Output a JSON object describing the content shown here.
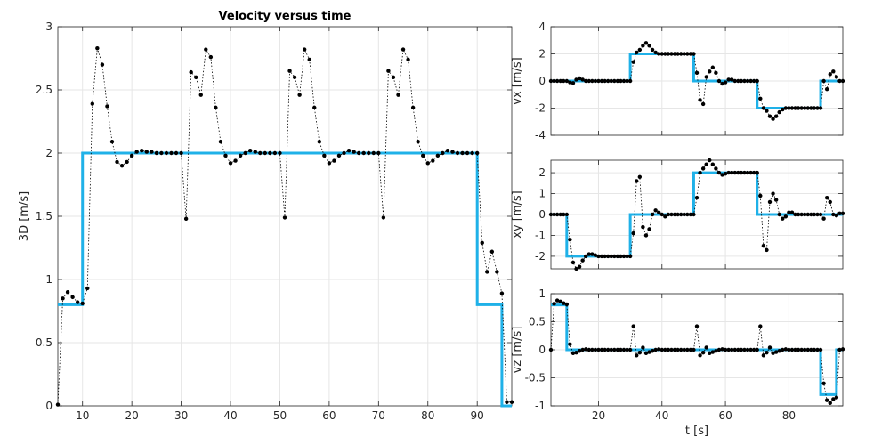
{
  "colors": {
    "reference": "#1fb1e8",
    "measured": "#000000"
  },
  "chart_data": [
    {
      "type": "line",
      "title": "Velocity versus time",
      "xlabel": "",
      "ylabel": "3D [m/s]",
      "xlim": [
        5,
        97
      ],
      "ylim": [
        0,
        3
      ],
      "xticks": [
        10,
        20,
        30,
        40,
        50,
        60,
        70,
        80,
        90
      ],
      "yticks": [
        0,
        0.5,
        1,
        1.5,
        2,
        2.5,
        3
      ],
      "grid": true,
      "reference": {
        "x": [
          5,
          10,
          10,
          90,
          90,
          95,
          95,
          97
        ],
        "y": [
          0.8,
          0.8,
          2,
          2,
          0.8,
          0.8,
          0,
          0
        ]
      },
      "measured": {
        "x": [
          5,
          6,
          7,
          8,
          9,
          10,
          11,
          12,
          13,
          14,
          15,
          16,
          17,
          18,
          19,
          20,
          21,
          22,
          23,
          24,
          25,
          26,
          27,
          28,
          29,
          30,
          31,
          32,
          33,
          34,
          35,
          36,
          37,
          38,
          39,
          40,
          41,
          42,
          43,
          44,
          45,
          46,
          47,
          48,
          49,
          50,
          51,
          52,
          53,
          54,
          55,
          56,
          57,
          58,
          59,
          60,
          61,
          62,
          63,
          64,
          65,
          66,
          67,
          68,
          69,
          70,
          71,
          72,
          73,
          74,
          75,
          76,
          77,
          78,
          79,
          80,
          81,
          82,
          83,
          84,
          85,
          86,
          87,
          88,
          89,
          90,
          91,
          92,
          93,
          94,
          95,
          96,
          97
        ],
        "y": [
          0.01,
          0.85,
          0.9,
          0.86,
          0.82,
          0.81,
          0.93,
          2.39,
          2.83,
          2.7,
          2.37,
          2.09,
          1.93,
          1.9,
          1.93,
          1.98,
          2.01,
          2.02,
          2.01,
          2.01,
          2.0,
          2.0,
          2.0,
          2.0,
          2.0,
          2.0,
          1.48,
          2.64,
          2.6,
          2.46,
          2.82,
          2.76,
          2.36,
          2.09,
          1.98,
          1.92,
          1.94,
          1.98,
          2.0,
          2.02,
          2.01,
          2.0,
          2.0,
          2.0,
          2.0,
          2.0,
          1.49,
          2.65,
          2.6,
          2.46,
          2.82,
          2.74,
          2.36,
          2.09,
          1.98,
          1.92,
          1.94,
          1.98,
          2.0,
          2.02,
          2.01,
          2.0,
          2.0,
          2.0,
          2.0,
          2.0,
          1.49,
          2.65,
          2.6,
          2.46,
          2.82,
          2.74,
          2.36,
          2.09,
          1.98,
          1.92,
          1.94,
          1.98,
          2.0,
          2.02,
          2.01,
          2.0,
          2.0,
          2.0,
          2.0,
          2.0,
          1.29,
          1.06,
          1.22,
          1.06,
          0.89,
          0.03,
          0.03
        ]
      }
    },
    {
      "type": "line",
      "title": "",
      "xlabel": "",
      "ylabel": "vx [m/s]",
      "xlim": [
        5,
        97
      ],
      "ylim": [
        -4,
        4
      ],
      "xticks": [
        20,
        40,
        60,
        80
      ],
      "yticks": [
        -4,
        -2,
        0,
        2,
        4
      ],
      "show_xticklabels": false,
      "grid": true,
      "reference": {
        "x": [
          5,
          30,
          30,
          50,
          50,
          70,
          70,
          90,
          90,
          97
        ],
        "y": [
          0,
          0,
          2,
          2,
          0,
          0,
          -2,
          -2,
          0,
          0
        ]
      },
      "measured": {
        "x": [
          5,
          6,
          7,
          8,
          9,
          10,
          11,
          12,
          13,
          14,
          15,
          16,
          17,
          18,
          19,
          20,
          21,
          22,
          23,
          24,
          25,
          26,
          27,
          28,
          29,
          30,
          31,
          32,
          33,
          34,
          35,
          36,
          37,
          38,
          39,
          40,
          41,
          42,
          43,
          44,
          45,
          46,
          47,
          48,
          49,
          50,
          51,
          52,
          53,
          54,
          55,
          56,
          57,
          58,
          59,
          60,
          61,
          62,
          63,
          64,
          65,
          66,
          67,
          68,
          69,
          70,
          71,
          72,
          73,
          74,
          75,
          76,
          77,
          78,
          79,
          80,
          81,
          82,
          83,
          84,
          85,
          86,
          87,
          88,
          89,
          90,
          91,
          92,
          93,
          94,
          95,
          96,
          97
        ],
        "y": [
          0.0,
          0.0,
          0.0,
          0.0,
          0.0,
          0.0,
          -0.1,
          -0.15,
          0.1,
          0.2,
          0.1,
          0.0,
          0.0,
          0.0,
          0.0,
          0.0,
          0.0,
          0.0,
          0.0,
          0.0,
          0.0,
          0.0,
          0.0,
          0.0,
          0.0,
          0.0,
          1.4,
          2.1,
          2.3,
          2.6,
          2.8,
          2.6,
          2.3,
          2.1,
          2.0,
          2.0,
          2.0,
          2.0,
          2.0,
          2.0,
          2.0,
          2.0,
          2.0,
          2.0,
          2.0,
          2.0,
          0.6,
          -1.4,
          -1.7,
          0.3,
          0.7,
          1.0,
          0.6,
          0.0,
          -0.2,
          -0.1,
          0.1,
          0.1,
          0.0,
          0.0,
          0.0,
          0.0,
          0.0,
          0.0,
          0.0,
          0.0,
          -1.3,
          -2.0,
          -2.2,
          -2.6,
          -2.8,
          -2.6,
          -2.3,
          -2.1,
          -2.0,
          -2.0,
          -2.0,
          -2.0,
          -2.0,
          -2.0,
          -2.0,
          -2.0,
          -2.0,
          -2.0,
          -2.0,
          -2.0,
          0.0,
          -0.6,
          0.5,
          0.7,
          0.3,
          0.0,
          0.0
        ]
      }
    },
    {
      "type": "line",
      "title": "",
      "xlabel": "",
      "ylabel": "xy [m/s]",
      "xlim": [
        5,
        97
      ],
      "ylim": [
        -2.6,
        2.6
      ],
      "xticks": [
        20,
        40,
        60,
        80
      ],
      "yticks": [
        -2,
        -1,
        0,
        1,
        2
      ],
      "show_xticklabels": false,
      "grid": true,
      "reference": {
        "x": [
          5,
          10,
          10,
          30,
          30,
          50,
          50,
          70,
          70,
          97
        ],
        "y": [
          0,
          0,
          -2,
          -2,
          0,
          0,
          2,
          2,
          0,
          0
        ]
      },
      "measured": {
        "x": [
          5,
          6,
          7,
          8,
          9,
          10,
          11,
          12,
          13,
          14,
          15,
          16,
          17,
          18,
          19,
          20,
          21,
          22,
          23,
          24,
          25,
          26,
          27,
          28,
          29,
          30,
          31,
          32,
          33,
          34,
          35,
          36,
          37,
          38,
          39,
          40,
          41,
          42,
          43,
          44,
          45,
          46,
          47,
          48,
          49,
          50,
          51,
          52,
          53,
          54,
          55,
          56,
          57,
          58,
          59,
          60,
          61,
          62,
          63,
          64,
          65,
          66,
          67,
          68,
          69,
          70,
          71,
          72,
          73,
          74,
          75,
          76,
          77,
          78,
          79,
          80,
          81,
          82,
          83,
          84,
          85,
          86,
          87,
          88,
          89,
          90,
          91,
          92,
          93,
          94,
          95,
          96,
          97
        ],
        "y": [
          0.0,
          0.0,
          0.0,
          0.0,
          0.0,
          0.0,
          -1.2,
          -2.3,
          -2.6,
          -2.5,
          -2.2,
          -2.0,
          -1.9,
          -1.9,
          -1.95,
          -2.0,
          -2.0,
          -2.0,
          -2.0,
          -2.0,
          -2.0,
          -2.0,
          -2.0,
          -2.0,
          -2.0,
          -2.0,
          -0.9,
          1.6,
          1.8,
          -0.6,
          -1.0,
          -0.7,
          0.0,
          0.2,
          0.1,
          0.0,
          -0.1,
          0.0,
          0.0,
          0.0,
          0.0,
          0.0,
          0.0,
          0.0,
          0.0,
          0.0,
          0.8,
          2.0,
          2.2,
          2.4,
          2.6,
          2.4,
          2.2,
          2.0,
          1.9,
          1.95,
          2.0,
          2.0,
          2.0,
          2.0,
          2.0,
          2.0,
          2.0,
          2.0,
          2.0,
          2.0,
          0.9,
          -1.5,
          -1.7,
          0.6,
          1.0,
          0.7,
          0.0,
          -0.2,
          -0.1,
          0.1,
          0.1,
          0.0,
          0.0,
          0.0,
          0.0,
          0.0,
          0.0,
          0.0,
          0.0,
          0.0,
          -0.2,
          0.8,
          0.6,
          0.0,
          -0.05,
          0.05,
          0.05
        ]
      }
    },
    {
      "type": "line",
      "title": "",
      "xlabel": "t [s]",
      "ylabel": "vz [m/s]",
      "xlim": [
        5,
        97
      ],
      "ylim": [
        -1,
        1
      ],
      "xticks": [
        20,
        40,
        60,
        80
      ],
      "yticks": [
        -1,
        -0.5,
        0,
        0.5,
        1
      ],
      "show_xticklabels": true,
      "grid": true,
      "reference": {
        "x": [
          5,
          10,
          10,
          90,
          90,
          95,
          95,
          97
        ],
        "y": [
          0.8,
          0.8,
          0,
          0,
          -0.8,
          -0.8,
          0,
          0
        ]
      },
      "measured": {
        "x": [
          5,
          6,
          7,
          8,
          9,
          10,
          11,
          12,
          13,
          14,
          15,
          16,
          17,
          18,
          19,
          20,
          21,
          22,
          23,
          24,
          25,
          26,
          27,
          28,
          29,
          30,
          31,
          32,
          33,
          34,
          35,
          36,
          37,
          38,
          39,
          40,
          41,
          42,
          43,
          44,
          45,
          46,
          47,
          48,
          49,
          50,
          51,
          52,
          53,
          54,
          55,
          56,
          57,
          58,
          59,
          60,
          61,
          62,
          63,
          64,
          65,
          66,
          67,
          68,
          69,
          70,
          71,
          72,
          73,
          74,
          75,
          76,
          77,
          78,
          79,
          80,
          81,
          82,
          83,
          84,
          85,
          86,
          87,
          88,
          89,
          90,
          91,
          92,
          93,
          94,
          95,
          96,
          97
        ],
        "y": [
          0.0,
          0.82,
          0.88,
          0.86,
          0.83,
          0.81,
          0.1,
          -0.06,
          -0.05,
          -0.02,
          0.0,
          0.01,
          0.0,
          0.0,
          0.0,
          0.0,
          0.0,
          0.0,
          0.0,
          0.0,
          0.0,
          0.0,
          0.0,
          0.0,
          0.0,
          0.0,
          0.42,
          -0.1,
          -0.05,
          0.04,
          -0.06,
          -0.04,
          -0.02,
          0.0,
          0.01,
          0.0,
          0.0,
          0.0,
          0.0,
          0.0,
          0.0,
          0.0,
          0.0,
          0.0,
          0.0,
          0.0,
          0.42,
          -0.1,
          -0.05,
          0.04,
          -0.06,
          -0.04,
          -0.02,
          0.0,
          0.01,
          0.0,
          0.0,
          0.0,
          0.0,
          0.0,
          0.0,
          0.0,
          0.0,
          0.0,
          0.0,
          0.0,
          0.42,
          -0.1,
          -0.05,
          0.04,
          -0.06,
          -0.04,
          -0.02,
          0.0,
          0.01,
          0.0,
          0.0,
          0.0,
          0.0,
          0.0,
          0.0,
          0.0,
          0.0,
          0.0,
          0.0,
          0.0,
          -0.6,
          -0.9,
          -0.95,
          -0.88,
          -0.85,
          0.0,
          0.01
        ]
      }
    }
  ]
}
